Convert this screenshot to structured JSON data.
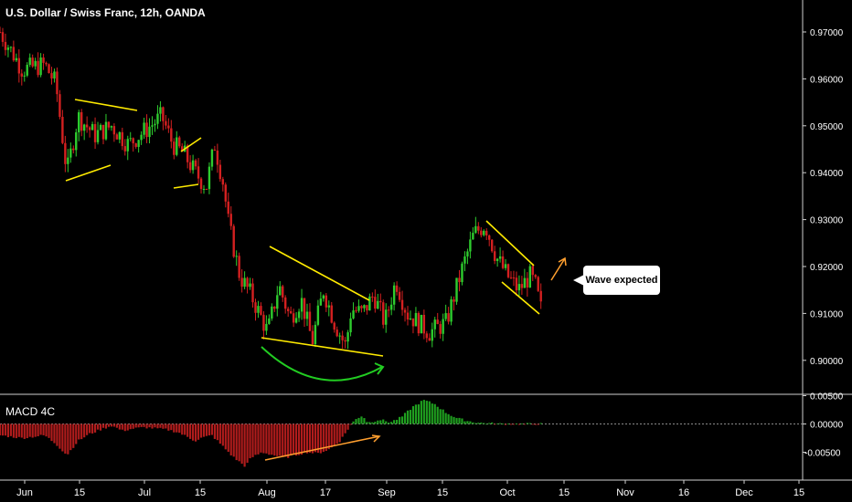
{
  "header": {
    "title": "U.S. Dollar / Swiss Franc, 12h, OANDA"
  },
  "annotation": {
    "text": "Wave expected"
  },
  "colors": {
    "up": "#2ecc2e",
    "down": "#d42020",
    "trendline": "#ffeb00",
    "arrow": "#ff9f2f",
    "arc": "#22cc22",
    "macd_pos": "#1f9e1f",
    "macd_neg": "#b01c1c",
    "axis_text": "#ffffff"
  },
  "chart_data": [
    {
      "type": "candlestick",
      "title": "U.S. Dollar / Swiss Franc, 12h, OANDA",
      "ylim": [
        0.895,
        0.9755
      ],
      "y_ticks": [
        "0.97000",
        "0.96000",
        "0.95000",
        "0.94000",
        "0.93000",
        "0.92000",
        "0.91000",
        "0.90000"
      ],
      "x_ticks": [
        "Jun",
        "15",
        "Jul",
        "15",
        "Aug",
        "17",
        "Sep",
        "15",
        "Oct",
        "15",
        "Nov",
        "16",
        "Dec",
        "15"
      ],
      "close_path": [
        [
          0,
          0.97
        ],
        [
          4,
          0.962
        ],
        [
          8,
          0.963
        ],
        [
          10,
          0.959
        ],
        [
          12,
          0.94
        ],
        [
          14,
          0.952
        ],
        [
          17,
          0.948
        ],
        [
          20,
          0.95
        ],
        [
          23,
          0.946
        ],
        [
          26,
          0.949
        ],
        [
          29,
          0.952
        ],
        [
          31,
          0.946
        ],
        [
          33,
          0.944
        ],
        [
          35,
          0.94
        ],
        [
          37,
          0.937
        ],
        [
          38.5,
          0.946
        ],
        [
          40,
          0.938
        ],
        [
          41,
          0.929
        ],
        [
          43,
          0.918
        ],
        [
          45,
          0.914
        ],
        [
          48,
          0.906
        ],
        [
          50,
          0.916
        ],
        [
          52,
          0.909
        ],
        [
          54,
          0.913
        ],
        [
          56,
          0.904
        ],
        [
          58,
          0.915
        ],
        [
          60,
          0.908
        ],
        [
          62,
          0.903
        ],
        [
          63,
          0.911
        ],
        [
          65,
          0.91
        ],
        [
          67,
          0.914
        ],
        [
          69,
          0.908
        ],
        [
          71,
          0.917
        ],
        [
          73,
          0.91
        ],
        [
          75,
          0.908
        ],
        [
          77,
          0.906
        ],
        [
          80,
          0.908
        ],
        [
          83,
          0.92
        ],
        [
          85,
          0.927
        ],
        [
          87,
          0.929
        ],
        [
          89,
          0.922
        ],
        [
          91,
          0.918
        ],
        [
          93,
          0.915
        ],
        [
          95,
          0.918
        ],
        [
          96,
          0.916
        ],
        [
          97,
          0.911
        ]
      ],
      "candle_count": 200
    },
    {
      "type": "bar",
      "title": "MACD 4C",
      "y_ticks": [
        "0.00500",
        "0.00000",
        "-0.00500"
      ],
      "ylim": [
        -0.0088,
        0.0059
      ],
      "hist_path": [
        [
          0,
          -0.002
        ],
        [
          4,
          -0.0025
        ],
        [
          8,
          -0.002
        ],
        [
          10,
          -0.0035
        ],
        [
          12,
          -0.0055
        ],
        [
          14,
          -0.003
        ],
        [
          16,
          -0.0018
        ],
        [
          18,
          -0.001
        ],
        [
          20,
          -0.0003
        ],
        [
          22,
          -0.0012
        ],
        [
          24,
          -0.0008
        ],
        [
          26,
          -0.0006
        ],
        [
          28,
          -0.0008
        ],
        [
          30,
          -0.001
        ],
        [
          32,
          -0.0015
        ],
        [
          34,
          -0.0025
        ],
        [
          35,
          -0.003
        ],
        [
          36,
          -0.0025
        ],
        [
          38,
          -0.002
        ],
        [
          40,
          -0.004
        ],
        [
          42,
          -0.006
        ],
        [
          44,
          -0.0075
        ],
        [
          45,
          -0.006
        ],
        [
          47,
          -0.005
        ],
        [
          49,
          -0.0055
        ],
        [
          51,
          -0.006
        ],
        [
          53,
          -0.0055
        ],
        [
          55,
          -0.005
        ],
        [
          57,
          -0.0052
        ],
        [
          59,
          -0.0045
        ],
        [
          61,
          -0.003
        ],
        [
          62,
          -0.0015
        ],
        [
          63,
          0.0
        ],
        [
          64,
          0.001
        ],
        [
          65,
          0.0015
        ],
        [
          66,
          0.0002
        ],
        [
          68,
          0.0008
        ],
        [
          70,
          0.0003
        ],
        [
          72,
          0.0012
        ],
        [
          74,
          0.003
        ],
        [
          76,
          0.0042
        ],
        [
          78,
          0.0035
        ],
        [
          80,
          0.002
        ],
        [
          82,
          0.001
        ],
        [
          84,
          0.0005
        ],
        [
          86,
          0.0002
        ],
        [
          88,
          0.0001
        ],
        [
          90,
          0.0
        ]
      ]
    }
  ]
}
